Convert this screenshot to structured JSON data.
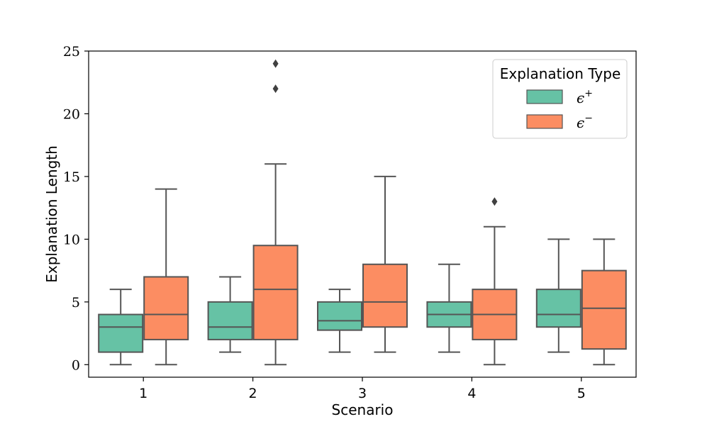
{
  "chart_data": {
    "type": "boxplot",
    "title": "",
    "xlabel": "Scenario",
    "ylabel": "Explanation Length",
    "ylim": [
      -1,
      25
    ],
    "yticks": [
      "0",
      "5",
      "10",
      "15",
      "20",
      "25"
    ],
    "ytick_values": [
      0,
      5,
      10,
      15,
      20,
      25
    ],
    "categories": [
      "1",
      "2",
      "3",
      "4",
      "5"
    ],
    "legend": {
      "title": "Explanation Type",
      "position": "top-right"
    },
    "series": [
      {
        "name": "ϵ⁺",
        "name_base": "ϵ",
        "name_sup": "+",
        "color": "#66c2a5",
        "boxes": [
          {
            "whislo": 0,
            "q1": 1,
            "med": 3,
            "q3": 4,
            "whishi": 6,
            "fliers": []
          },
          {
            "whislo": 1,
            "q1": 2,
            "med": 3,
            "q3": 5,
            "whishi": 7,
            "fliers": []
          },
          {
            "whislo": 1,
            "q1": 2.75,
            "med": 3.5,
            "q3": 5,
            "whishi": 6,
            "fliers": []
          },
          {
            "whislo": 1,
            "q1": 3,
            "med": 4,
            "q3": 5,
            "whishi": 8,
            "fliers": []
          },
          {
            "whislo": 1,
            "q1": 3,
            "med": 4,
            "q3": 6,
            "whishi": 10,
            "fliers": []
          }
        ]
      },
      {
        "name": "ϵ⁻",
        "name_base": "ϵ",
        "name_sup": "−",
        "color": "#fc8d62",
        "boxes": [
          {
            "whislo": 0,
            "q1": 2,
            "med": 4,
            "q3": 7,
            "whishi": 14,
            "fliers": []
          },
          {
            "whislo": 0,
            "q1": 2,
            "med": 6,
            "q3": 9.5,
            "whishi": 16,
            "fliers": [
              22,
              24
            ]
          },
          {
            "whislo": 1,
            "q1": 3,
            "med": 5,
            "q3": 8,
            "whishi": 15,
            "fliers": []
          },
          {
            "whislo": 0,
            "q1": 2,
            "med": 4,
            "q3": 6,
            "whishi": 11,
            "fliers": [
              13
            ]
          },
          {
            "whislo": 0,
            "q1": 1.25,
            "med": 4.5,
            "q3": 7.5,
            "whishi": 10,
            "fliers": []
          }
        ]
      }
    ]
  }
}
